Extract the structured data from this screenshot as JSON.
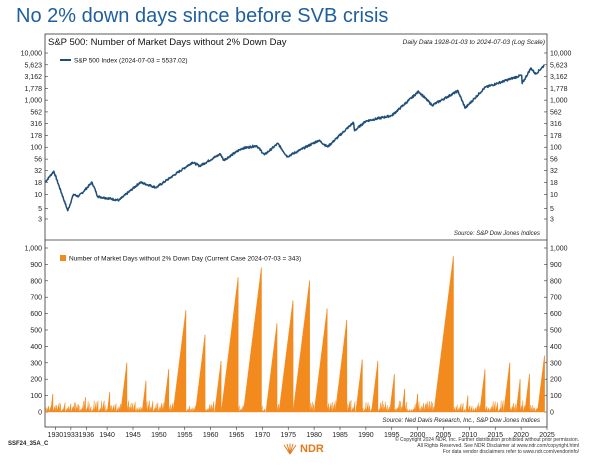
{
  "headline": "No 2% down days since before SVB crisis",
  "chart_title": "S&P 500: Number of Market Days without 2% Down Day",
  "chart_note": "Daily Data 1928-01-03 to 2024-07-03 (Log Scale)",
  "footer": {
    "code": "SSF24_35A_C",
    "logo": "NDR",
    "legal": [
      "© Copyright 2024 NDR, Inc. Further distribution prohibited without prior permission.",
      "All Rights Reserved. See NDR Disclaimer at www.ndr.com/copyright.html",
      "For data vendor disclaimers refer to www.ndr.com/vendorinfo/"
    ]
  },
  "colors": {
    "headline": "#1f5fa0",
    "index_line": "#1f4e79",
    "bars": "#f28a1e",
    "logo": "#e07b1a"
  },
  "chart_data": [
    {
      "type": "line",
      "legend": "S&P 500 Index (2024-07-03 = 5537.02)",
      "legend_placement": "top-left",
      "source": "Source:  S&P Dow Jones Indices",
      "yscale": "log",
      "ylim": [
        3,
        10000
      ],
      "y_ticks": [
        "10,000",
        "5,623",
        "3,162",
        "1,778",
        "1,000",
        "562",
        "316",
        "178",
        "100",
        "56",
        "32",
        "18",
        "10",
        "5",
        "3"
      ],
      "x": [
        1928,
        1929.7,
        1932.4,
        1933.5,
        1934.5,
        1937.1,
        1938.2,
        1942.3,
        1946.4,
        1949.5,
        1956.5,
        1957.9,
        1961.9,
        1962.5,
        1966,
        1968.9,
        1970.4,
        1973,
        1974.8,
        1980.9,
        1982.6,
        1987.6,
        1987.8,
        1990,
        1995,
        2000.2,
        2002.8,
        2007.8,
        2009.2,
        2013,
        2020.1,
        2020.2,
        2021.9,
        2022.8,
        2024.5
      ],
      "y": [
        18,
        31,
        4.5,
        10,
        9,
        18,
        9,
        7.5,
        18,
        14,
        48,
        40,
        72,
        53,
        94,
        108,
        69,
        120,
        63,
        140,
        102,
        336,
        224,
        360,
        470,
        1527,
        777,
        1565,
        676,
        1850,
        3386,
        2237,
        4796,
        3577,
        5537
      ],
      "xlim": [
        1928,
        2025
      ]
    },
    {
      "type": "bar",
      "legend": "Number of Market Days without 2% Down Day (Current Case 2024-07-03 = 343)",
      "legend_placement": "top-left",
      "source": "Source:  Ned Davis Research, Inc., S&P Dow Jones Indices",
      "ylim": [
        0,
        1000
      ],
      "y_ticks": [
        "0",
        "100",
        "200",
        "300",
        "400",
        "500",
        "600",
        "700",
        "800",
        "900",
        "1,000"
      ],
      "x_ticks": [
        "1930",
        "1933",
        "1936",
        "1940",
        "1945",
        "1950",
        "1955",
        "1960",
        "1965",
        "1970",
        "1975",
        "1980",
        "1985",
        "1990",
        "1995",
        "2000",
        "2005",
        "2010",
        "2015",
        "2020",
        "2025"
      ],
      "x_tick_positions": [
        1930,
        1933,
        1936,
        1940,
        1945,
        1950,
        1955,
        1960,
        1965,
        1970,
        1975,
        1980,
        1985,
        1990,
        1995,
        2000,
        2005,
        2010,
        2015,
        2020,
        2025
      ],
      "peaks": [
        [
          1929.5,
          110
        ],
        [
          1935.8,
          90
        ],
        [
          1940.5,
          120
        ],
        [
          1943.8,
          300
        ],
        [
          1947.5,
          190
        ],
        [
          1951.9,
          260
        ],
        [
          1955.2,
          620
        ],
        [
          1958.9,
          470
        ],
        [
          1962.0,
          310
        ],
        [
          1965.3,
          820
        ],
        [
          1969.8,
          880
        ],
        [
          1972.8,
          540
        ],
        [
          1975.9,
          680
        ],
        [
          1979.1,
          800
        ],
        [
          1982.5,
          630
        ],
        [
          1986.3,
          560
        ],
        [
          1989.3,
          320
        ],
        [
          1992.3,
          310
        ],
        [
          1995.5,
          230
        ],
        [
          1997.5,
          140
        ],
        [
          2000.0,
          110
        ],
        [
          2006.9,
          950
        ],
        [
          2009.7,
          100
        ],
        [
          2013.0,
          260
        ],
        [
          2017.8,
          300
        ],
        [
          2019.8,
          200
        ],
        [
          2021.6,
          230
        ],
        [
          2024.5,
          343
        ]
      ],
      "base_level": 40,
      "xlim": [
        1928,
        2025
      ]
    }
  ]
}
